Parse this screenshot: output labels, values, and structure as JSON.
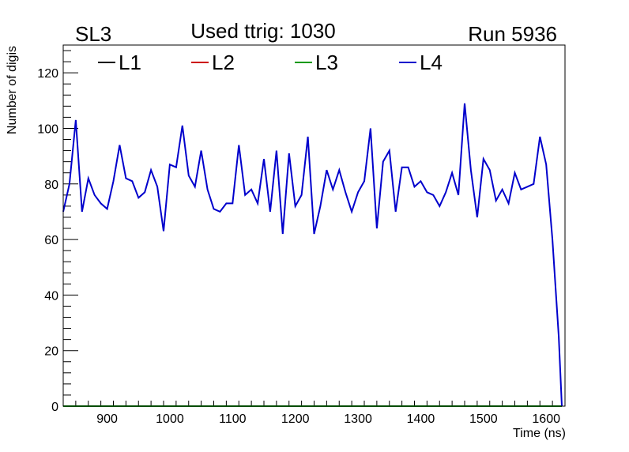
{
  "header": {
    "left": "SL3",
    "center": "Used ttrig: 1030",
    "right": "Run 5936"
  },
  "chart_data": {
    "type": "line",
    "xlabel": "Time (ns)",
    "ylabel": "Number of digis",
    "xlim": [
      830,
      1630
    ],
    "ylim": [
      0,
      130
    ],
    "x_ticks": [
      900,
      1000,
      1100,
      1200,
      1300,
      1400,
      1500,
      1600
    ],
    "y_ticks": [
      0,
      20,
      40,
      60,
      80,
      100,
      120
    ],
    "grid": false,
    "legend": "top, horizontal",
    "x": [
      830,
      840,
      850,
      860,
      870,
      880,
      890,
      900,
      910,
      920,
      930,
      940,
      950,
      960,
      970,
      980,
      990,
      1000,
      1010,
      1020,
      1030,
      1040,
      1050,
      1060,
      1070,
      1080,
      1090,
      1100,
      1110,
      1120,
      1130,
      1140,
      1150,
      1160,
      1170,
      1180,
      1190,
      1200,
      1210,
      1220,
      1230,
      1240,
      1250,
      1260,
      1270,
      1280,
      1290,
      1300,
      1310,
      1320,
      1330,
      1340,
      1350,
      1360,
      1370,
      1380,
      1390,
      1400,
      1410,
      1420,
      1430,
      1440,
      1450,
      1460,
      1470,
      1480,
      1490,
      1500,
      1510,
      1520,
      1530,
      1540,
      1550,
      1560,
      1570,
      1580,
      1590,
      1600,
      1610,
      1620,
      1625
    ],
    "series": [
      {
        "name": "L1",
        "color": "#000000",
        "values": [
          0,
          0,
          0,
          0,
          0,
          0,
          0,
          0,
          0,
          0,
          0,
          0,
          0,
          0,
          0,
          0,
          0,
          0,
          0,
          0,
          0,
          0,
          0,
          0,
          0,
          0,
          0,
          0,
          0,
          0,
          0,
          0,
          0,
          0,
          0,
          0,
          0,
          0,
          0,
          0,
          0,
          0,
          0,
          0,
          0,
          0,
          0,
          0,
          0,
          0,
          0,
          0,
          0,
          0,
          0,
          0,
          0,
          0,
          0,
          0,
          0,
          0,
          0,
          0,
          0,
          0,
          0,
          0,
          0,
          0,
          0,
          0,
          0,
          0,
          0,
          0,
          0,
          0,
          0,
          0,
          0
        ]
      },
      {
        "name": "L2",
        "color": "#cc0000",
        "values": [
          0,
          0,
          0,
          0,
          0,
          0,
          0,
          0,
          0,
          0,
          0,
          0,
          0,
          0,
          0,
          0,
          0,
          0,
          0,
          0,
          0,
          0,
          0,
          0,
          0,
          0,
          0,
          0,
          0,
          0,
          0,
          0,
          0,
          0,
          0,
          0,
          0,
          0,
          0,
          0,
          0,
          0,
          0,
          0,
          0,
          0,
          0,
          0,
          0,
          0,
          0,
          0,
          0,
          0,
          0,
          0,
          0,
          0,
          0,
          0,
          0,
          0,
          0,
          0,
          0,
          0,
          0,
          0,
          0,
          0,
          0,
          0,
          0,
          0,
          0,
          0,
          0,
          0,
          0,
          0,
          0
        ]
      },
      {
        "name": "L3",
        "color": "#009900",
        "values": [
          0,
          0,
          0,
          0,
          0,
          0,
          0,
          0,
          0,
          0,
          0,
          0,
          0,
          0,
          0,
          0,
          0,
          0,
          0,
          0,
          0,
          0,
          0,
          0,
          0,
          0,
          0,
          0,
          0,
          0,
          0,
          0,
          0,
          0,
          0,
          0,
          0,
          0,
          0,
          0,
          0,
          0,
          0,
          0,
          0,
          0,
          0,
          0,
          0,
          0,
          0,
          0,
          0,
          0,
          0,
          0,
          0,
          0,
          0,
          0,
          0,
          0,
          0,
          0,
          0,
          0,
          0,
          0,
          0,
          0,
          0,
          0,
          0,
          0,
          0,
          0,
          0,
          0,
          0,
          0,
          0
        ]
      },
      {
        "name": "L4",
        "color": "#0000cc",
        "values": [
          70,
          80,
          103,
          70,
          82,
          76,
          73,
          71,
          81,
          94,
          82,
          81,
          75,
          77,
          85,
          79,
          63,
          87,
          86,
          101,
          83,
          79,
          92,
          78,
          71,
          70,
          73,
          73,
          94,
          76,
          78,
          73,
          89,
          70,
          92,
          62,
          91,
          72,
          76,
          97,
          62,
          72,
          85,
          78,
          85,
          77,
          70,
          77,
          81,
          100,
          64,
          88,
          92,
          70,
          86,
          86,
          79,
          81,
          77,
          76,
          72,
          77,
          84,
          76,
          109,
          85,
          68,
          89,
          85,
          74,
          78,
          73,
          84,
          78,
          79,
          80,
          97,
          87,
          60,
          25,
          0
        ]
      }
    ]
  }
}
